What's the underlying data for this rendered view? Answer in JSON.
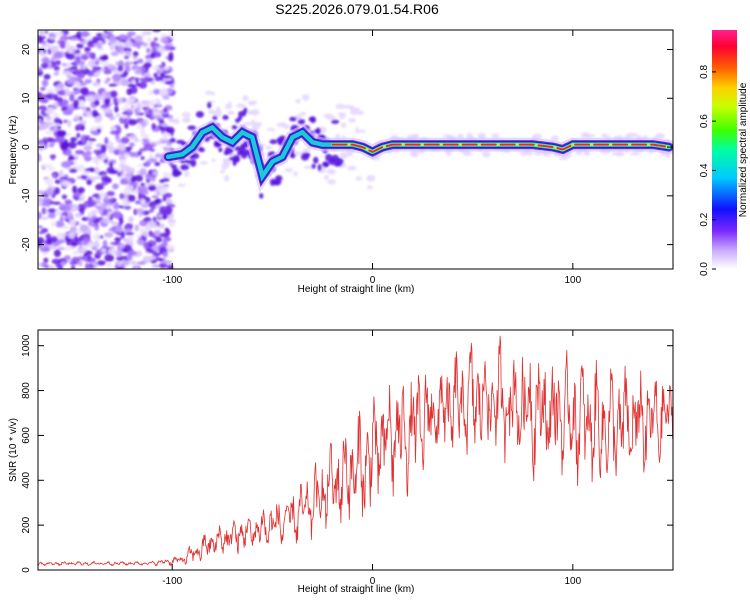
{
  "title": "S225.2026.079.01.54.R06",
  "colors": {
    "snr_line": "#e03030",
    "track_core": "#e8283c",
    "track_mid": "#1ec8d8",
    "track_edge": "#1428c8",
    "noise": "#7a2ee0"
  },
  "chart_data": [
    {
      "type": "heatmap",
      "xlabel": "Height of straight line (km)",
      "ylabel": "Frequency (Hz)",
      "xlim": [
        -167,
        150
      ],
      "ylim": [
        -25,
        24
      ],
      "xticks": [
        -100,
        0,
        100
      ],
      "yticks": [
        -20,
        -10,
        0,
        10,
        20
      ],
      "colorbar": {
        "label": "Normalized spectral amplitude",
        "range": [
          0,
          0.97
        ],
        "ticks": [
          0.0,
          0.2,
          0.4,
          0.6,
          0.8
        ]
      },
      "ridge": {
        "x": [
          -102,
          -95,
          -90,
          -85,
          -80,
          -75,
          -70,
          -65,
          -60,
          -55,
          -50,
          -45,
          -40,
          -35,
          -30,
          -25,
          -20,
          -15,
          -10,
          -5,
          0,
          5,
          10,
          20,
          40,
          60,
          80,
          90,
          95,
          100,
          120,
          140,
          148
        ],
        "y": [
          -2,
          -1.5,
          0,
          3,
          4,
          2,
          1,
          3,
          2,
          -6,
          -3,
          -2,
          2,
          3,
          1,
          0.5,
          0.5,
          0.5,
          0.5,
          0,
          -1,
          0,
          0.5,
          0.5,
          0.5,
          0.5,
          0.5,
          0,
          -0.5,
          0.5,
          0.5,
          0.5,
          0
        ]
      }
    },
    {
      "type": "line",
      "xlabel": "Height of straight line (km)",
      "ylabel": "SNR (10 * v/v)",
      "xlim": [
        -167,
        150
      ],
      "ylim": [
        0,
        1070
      ],
      "xticks": [
        -100,
        0,
        100
      ],
      "yticks": [
        0,
        200,
        400,
        600,
        800,
        1000
      ],
      "envelope": {
        "x": [
          -167,
          -110,
          -95,
          -90,
          -80,
          -70,
          -60,
          -50,
          -40,
          -30,
          -20,
          -10,
          -5,
          0,
          10,
          20,
          30,
          40,
          50,
          60,
          70,
          80,
          90,
          100,
          110,
          120,
          130,
          140,
          150
        ],
        "mean": [
          28,
          30,
          45,
          70,
          120,
          150,
          170,
          200,
          230,
          290,
          380,
          440,
          450,
          520,
          600,
          620,
          700,
          720,
          760,
          760,
          740,
          720,
          700,
          680,
          650,
          640,
          650,
          660,
          700
        ],
        "spread": [
          8,
          8,
          20,
          40,
          60,
          70,
          80,
          90,
          100,
          130,
          180,
          200,
          230,
          230,
          220,
          220,
          200,
          200,
          220,
          220,
          230,
          240,
          230,
          230,
          230,
          220,
          220,
          200,
          120
        ]
      }
    }
  ]
}
